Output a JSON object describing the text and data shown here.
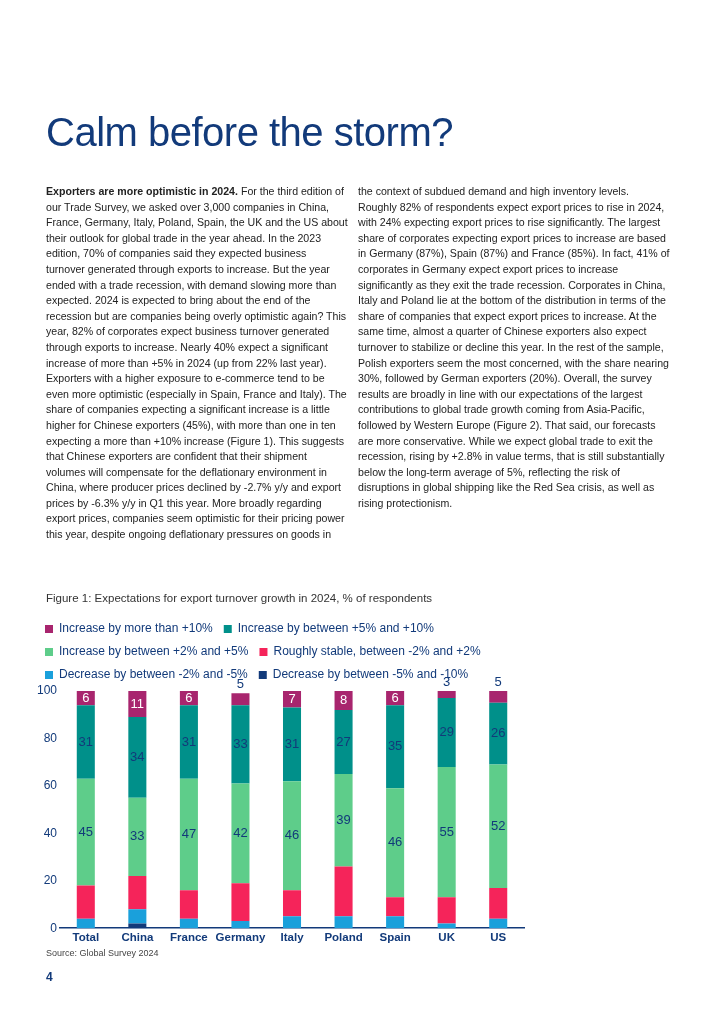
{
  "chart_data": {
    "type": "bar",
    "title": "Calm before the storm?",
    "subtitle": "Figure 1: Expectations for export turnover growth in 2024, % of respondents",
    "annotations": [
      "Exporters are more optimistic in 2024.",
      "For the third edition of our Trade Survey, we asked over 3,000 companies in China, France, Germany, Italy, Poland, Spain, the UK and the US about their outlook for global trade in the year ahead. In the 2023 edition, 70% of companies said they expected business turnover generated through exports to increase. But the year ended with a trade recession, with demand slowing more than expected. 2024 is expected to bring about the end of the recession but are companies being overly optimistic again? This year, 82% of corporates expect business turnover generated through exports to increase. Nearly 40% expect a significant increase of more than +5% in 2024 (up from 22% last year). Exporters with a higher exposure to e-commerce tend to be even more optimistic (especially in Spain, France and Italy). The share of companies expecting a significant increase is a little higher for Chinese exporters (45%), with more than one in ten expecting a more than +10% increase (Figure 1). This suggests that Chinese exporters are confident that their shipment volumes will compensate for the deflationary environment in China, where producer prices declined by -2.7% y/y and export prices by -6.3% y/y in Q1 this year. More broadly regarding export prices, companies seem optimistic for their pricing power this year, despite ongoing deflationary pressures on goods in",
      "the context of subdued demand and high inventory levels. Roughly 82% of respondents expect export prices to rise in 2024, with 24% expecting export prices to rise significantly. The largest share of corporates expecting export prices to increase are based in Germany (87%), Spain (87%) and France (85%). In fact, 41% of corporates in Germany expect export prices to increase significantly as they exit the trade recession. Corporates in China, Italy and Poland lie at the bottom of the distribution in terms of the share of companies that expect export prices to increase. At the same time, almost a quarter of Chinese exporters also expect turnover to stabilize or decline this year. In the rest of the sample, Polish exporters seem the most concerned, with the share nearing 30%, followed by German exporters (20%). Overall, the survey results are broadly in line with our expectations of the largest contributions to global trade growth coming from Asia-Pacific, followed by Western Europe (Figure 2). That said, our forecasts are more conservative. While we expect global trade to exit the recession, rising by +2.8% in value terms, that is still substantially below the long-term average of 5%, reflecting the risk of disruptions in global shipping like the Red Sea crisis, as well as rising protectionism.",
      "Source: Global Survey 2024",
      "4"
    ],
    "categories": [
      "Total",
      "China",
      "France",
      "Germany",
      "Italy",
      "Poland",
      "Spain",
      "UK",
      "US"
    ],
    "stacked": true,
    "ylim": [
      0,
      100
    ],
    "yticks": [
      0,
      20,
      40,
      60,
      80,
      100
    ],
    "grid": false,
    "legend": "top",
    "series": [
      {
        "name": "Decrease by between -5% and -10%",
        "color": "#123a7a",
        "values": [
          0,
          2,
          0,
          0,
          0,
          0,
          0,
          0,
          0
        ]
      },
      {
        "name": "Decrease by between -2% and -5%",
        "color": "#1aa0db",
        "values": [
          4,
          6,
          4,
          3,
          5,
          5,
          5,
          2,
          4
        ]
      },
      {
        "name": "Roughly stable, between -2% and +2%",
        "color": "#f5245a",
        "values": [
          14,
          14,
          12,
          16,
          11,
          21,
          8,
          11,
          13
        ]
      },
      {
        "name": "Increase by between +2% and +5%",
        "color": "#5ecd8a",
        "values": [
          45,
          33,
          47,
          42,
          46,
          39,
          46,
          55,
          52
        ],
        "value_labels": [
          "45",
          "33",
          "47",
          "42",
          "46",
          "39",
          "46",
          "55",
          "52"
        ]
      },
      {
        "name": "Increase by between +5% and +10%",
        "color": "#00908a",
        "values": [
          31,
          34,
          31,
          33,
          31,
          27,
          35,
          29,
          26
        ],
        "value_labels": [
          "31",
          "34",
          "31",
          "33",
          "31",
          "27",
          "35",
          "29",
          "26"
        ]
      },
      {
        "name": "Increase by more than +10%",
        "color": "#a8256e",
        "values": [
          6,
          11,
          6,
          5,
          7,
          8,
          6,
          3,
          5
        ],
        "value_labels": [
          "6",
          "11",
          "6",
          "5",
          "7",
          "8",
          "6",
          "3",
          "5"
        ]
      }
    ]
  }
}
